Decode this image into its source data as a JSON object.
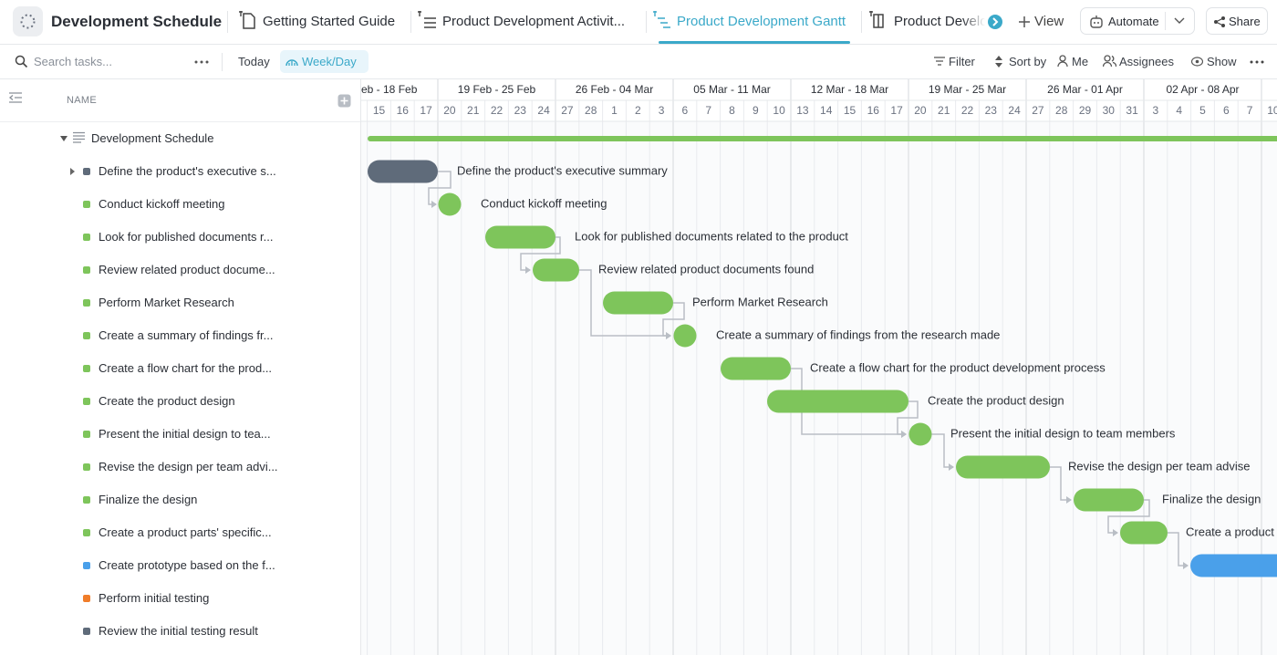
{
  "header": {
    "workspace": "Development Schedule",
    "tabs": [
      "Getting Started Guide",
      "Product Development Activit...",
      "Product Development Gantt",
      "Product Develo"
    ],
    "view_button": "View",
    "automate": "Automate",
    "share": "Share"
  },
  "toolbar": {
    "search_placeholder": "Search tasks...",
    "today": "Today",
    "scale": "Week/Day",
    "filter": "Filter",
    "sort": "Sort by",
    "me": "Me",
    "assignees": "Assignees",
    "show": "Show"
  },
  "list": {
    "column": "NAME",
    "group": "Development Schedule",
    "tasks": [
      {
        "name": "Define the product's executive s...",
        "bar_label": "Define the product's executive summary",
        "color": "#5f6b7a"
      },
      {
        "name": "Conduct kickoff meeting",
        "color": "#7ec55b"
      },
      {
        "name": "Look for published documents r...",
        "bar_label": "Look for published documents related to the product",
        "color": "#7ec55b"
      },
      {
        "name": "Review related product docume...",
        "bar_label": "Review related product documents found",
        "color": "#7ec55b"
      },
      {
        "name": "Perform Market Research",
        "color": "#7ec55b"
      },
      {
        "name": "Create a summary of findings fr...",
        "bar_label": "Create a summary of findings from the research made",
        "color": "#7ec55b"
      },
      {
        "name": "Create a flow chart for the prod...",
        "bar_label": "Create a flow chart for the product development process",
        "color": "#7ec55b"
      },
      {
        "name": "Create the product design",
        "color": "#7ec55b"
      },
      {
        "name": "Present the initial design to tea...",
        "bar_label": "Present the initial design to team members",
        "color": "#7ec55b"
      },
      {
        "name": "Revise the design per team advi...",
        "bar_label": "Revise the design per team advise",
        "color": "#7ec55b"
      },
      {
        "name": "Finalize the design",
        "color": "#7ec55b"
      },
      {
        "name": "Create a product parts' specific...",
        "bar_label": "Create a product",
        "color": "#7ec55b"
      },
      {
        "name": "Create prototype based on the f...",
        "color": "#4aa0ea"
      },
      {
        "name": "Perform initial testing",
        "color": "#f07d2a"
      },
      {
        "name": "Review the initial testing result",
        "color": "#5f6b7a"
      }
    ]
  },
  "timeline": {
    "weeks": [
      "eb - 18 Feb",
      "19 Feb - 25 Feb",
      "26 Feb - 04 Mar",
      "05 Mar - 11 Mar",
      "12 Mar - 18 Mar",
      "19 Mar - 25 Mar",
      "26 Mar - 01 Apr",
      "02 Apr - 08 Apr"
    ],
    "days": [
      15,
      16,
      17,
      20,
      21,
      22,
      23,
      24,
      27,
      28,
      1,
      2,
      3,
      6,
      7,
      8,
      9,
      10,
      13,
      14,
      15,
      16,
      17,
      20,
      21,
      22,
      23,
      24,
      27,
      28,
      29,
      30,
      31,
      3,
      4,
      5,
      6,
      7,
      10
    ]
  }
}
